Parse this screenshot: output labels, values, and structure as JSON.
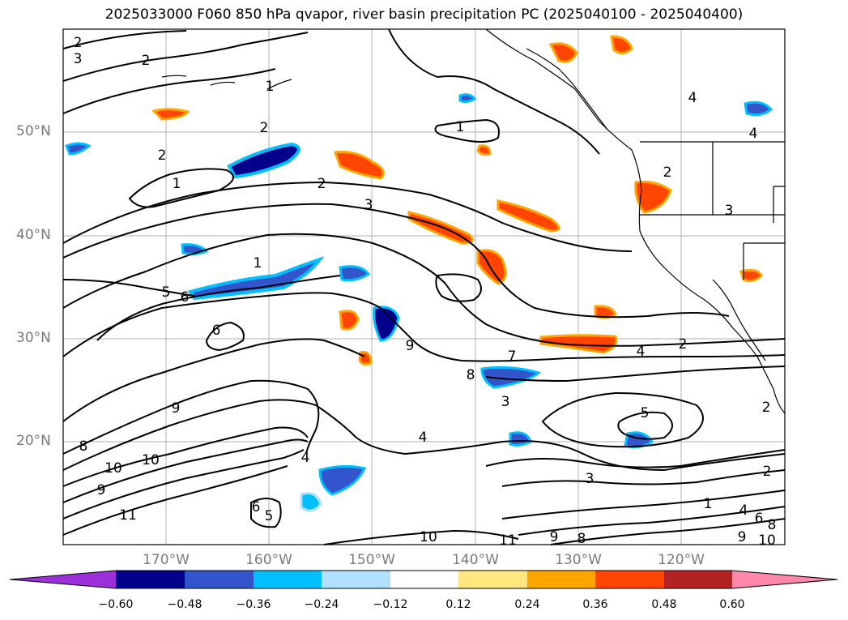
{
  "title": "2025033000 F060 850 hPa qvapor, river basin precipitation PC (2025040100 - 2025040400)",
  "lat_labels": [
    "50°N",
    "40°N",
    "30°N",
    "20°N"
  ],
  "lon_labels": [
    "170°W",
    "160°W",
    "150°W",
    "140°W",
    "130°W",
    "120°W"
  ],
  "colorbar": {
    "ticks": [
      "−0.60",
      "−0.48",
      "−0.36",
      "−0.24",
      "−0.12",
      "0.12",
      "0.24",
      "0.36",
      "0.48",
      "0.60"
    ],
    "colors": [
      "#9b30d9",
      "#00008b",
      "#3355cc",
      "#00bfff",
      "#b0e2ff",
      "#ffffff",
      "#ffe680",
      "#ffa500",
      "#ff4500",
      "#b22222",
      "#ff88aa"
    ]
  },
  "contour_labels": [
    "2",
    "3",
    "2",
    "1",
    "1",
    "2",
    "1",
    "2",
    "3",
    "2",
    "4",
    "4",
    "2",
    "3",
    "5",
    "6",
    "6",
    "9",
    "7",
    "4",
    "2",
    "8",
    "3",
    "5",
    "9",
    "8",
    "10",
    "10",
    "9",
    "11",
    "4",
    "6",
    "5",
    "4",
    "3",
    "2",
    "1",
    "4",
    "6",
    "8",
    "10",
    "9",
    "10",
    "11",
    "9",
    "8",
    "2",
    "1"
  ]
}
